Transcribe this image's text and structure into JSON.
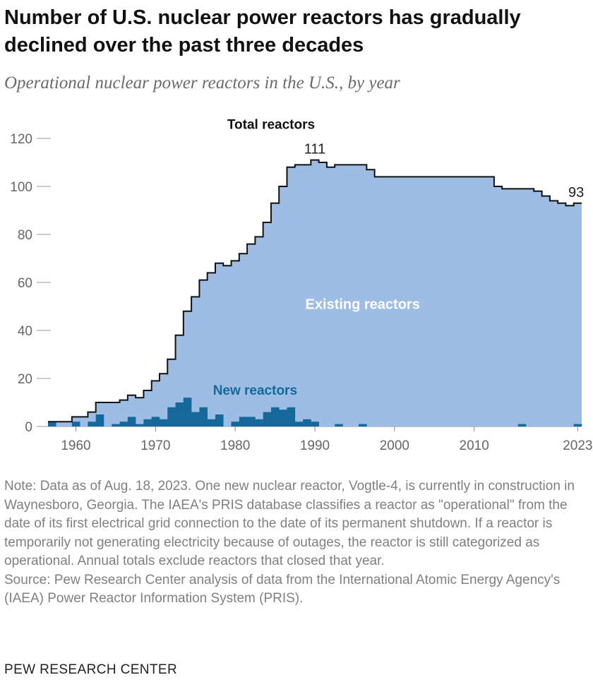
{
  "title": "Number of U.S. nuclear power reactors has gradually declined over the past three decades",
  "subtitle": "Operational nuclear power reactors in the U.S., by year",
  "note": "Note: Data as of Aug. 18, 2023. One new nuclear reactor, Vogtle-4, is currently in construction in Waynesboro, Georgia. The IAEA's PRIS database classifies a reactor as \"operational\" from the date of its first electrical grid connection to the date of its permanent shutdown. If a reactor is temporarily not generating electricity because of outages, the reactor is still categorized as operational. Annual totals exclude reactors that closed that year.",
  "source": "Source: Pew Research Center analysis of data from the International Atomic Energy Agency's (IAEA) Power Reactor Information System (PRIS).",
  "brand": "PEW RESEARCH CENTER",
  "colors": {
    "existing": "#9dbde4",
    "new": "#14699a",
    "total_line": "#111111",
    "existing_label": "#ffffff",
    "new_label": "#14699a"
  },
  "chart_data": {
    "type": "area",
    "step": true,
    "x_label_ticks": [
      1960,
      1970,
      1980,
      1990,
      2000,
      2010,
      2023
    ],
    "x_tick_labels": [
      "1960",
      "1970",
      "1980",
      "1990",
      "2000",
      "2010",
      "2023"
    ],
    "y_ticks": [
      0,
      20,
      40,
      60,
      80,
      100,
      120
    ],
    "y_tick_labels": [
      "0",
      "20",
      "40",
      "60",
      "80",
      "100",
      "120"
    ],
    "xlim": [
      1957,
      2023
    ],
    "ylim": [
      0,
      120
    ],
    "grid": false,
    "series_labels": {
      "total": "Total reactors",
      "existing": "Existing reactors",
      "new": "New reactors"
    },
    "annotations": [
      {
        "year": 1990,
        "text": "111"
      },
      {
        "year": 2023,
        "text": "93"
      }
    ],
    "years": [
      1957,
      1958,
      1959,
      1960,
      1961,
      1962,
      1963,
      1964,
      1965,
      1966,
      1967,
      1968,
      1969,
      1970,
      1971,
      1972,
      1973,
      1974,
      1975,
      1976,
      1977,
      1978,
      1979,
      1980,
      1981,
      1982,
      1983,
      1984,
      1985,
      1986,
      1987,
      1988,
      1989,
      1990,
      1991,
      1992,
      1993,
      1994,
      1995,
      1996,
      1997,
      1998,
      1999,
      2000,
      2001,
      2002,
      2003,
      2004,
      2005,
      2006,
      2007,
      2008,
      2009,
      2010,
      2011,
      2012,
      2013,
      2014,
      2015,
      2016,
      2017,
      2018,
      2019,
      2020,
      2021,
      2022,
      2023
    ],
    "series": [
      {
        "name": "Total reactors",
        "values": [
          2,
          2,
          2,
          4,
          4,
          6,
          10,
          10,
          10,
          11,
          13,
          12,
          15,
          19,
          22,
          28,
          38,
          48,
          54,
          61,
          64,
          68,
          67,
          69,
          72,
          76,
          79,
          85,
          93,
          100,
          108,
          109,
          109,
          111,
          110,
          108,
          109,
          109,
          109,
          109,
          107,
          104,
          104,
          104,
          104,
          104,
          104,
          104,
          104,
          104,
          104,
          104,
          104,
          104,
          104,
          104,
          100,
          99,
          99,
          99,
          99,
          98,
          96,
          94,
          93,
          92,
          93
        ]
      },
      {
        "name": "New reactors",
        "values": [
          2,
          0,
          0,
          2,
          0,
          2,
          5,
          0,
          1,
          2,
          4,
          1,
          3,
          4,
          3,
          8,
          10,
          12,
          6,
          8,
          3,
          5,
          0,
          2,
          4,
          4,
          3,
          6,
          8,
          7,
          8,
          2,
          3,
          2,
          0,
          0,
          1,
          0,
          0,
          1,
          0,
          0,
          0,
          0,
          0,
          0,
          0,
          0,
          0,
          0,
          0,
          0,
          0,
          0,
          0,
          0,
          0,
          0,
          0,
          1,
          0,
          0,
          0,
          0,
          0,
          0,
          1
        ]
      }
    ]
  }
}
